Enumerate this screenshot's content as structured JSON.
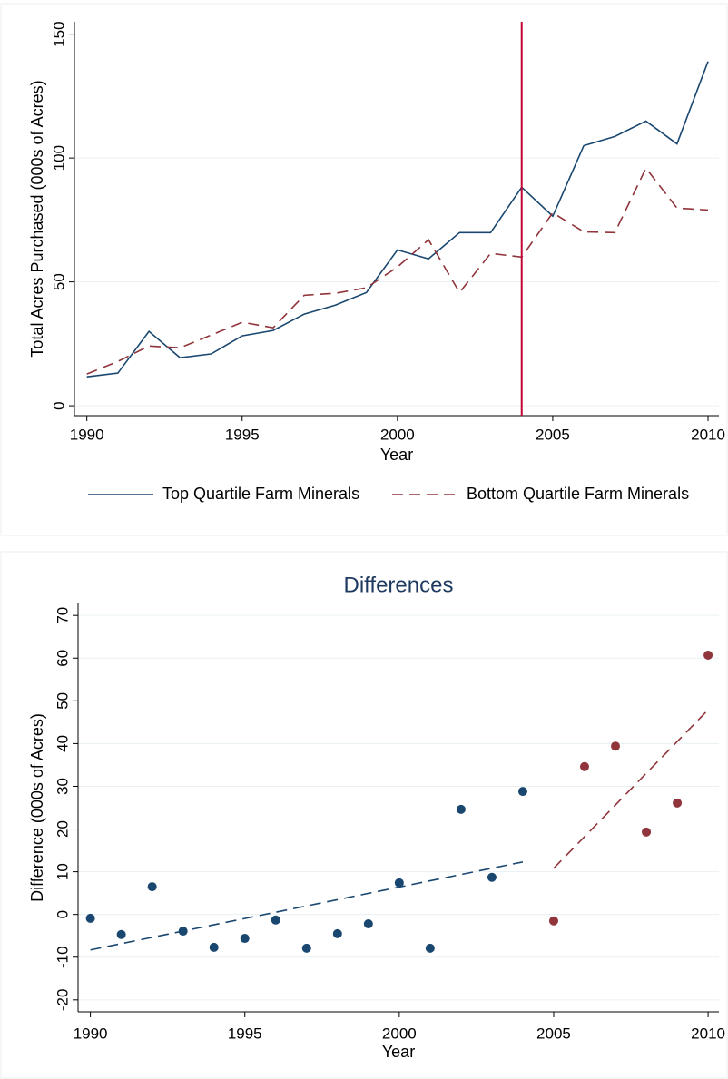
{
  "chart_data": [
    {
      "type": "line",
      "xlabel": "Year",
      "ylabel": "Total Acres Purchased (000s of Acres)",
      "xlim": [
        1989.6,
        2010.35
      ],
      "xticks": [
        1990,
        1995,
        2000,
        2005,
        2010
      ],
      "ylim": [
        -4,
        155
      ],
      "yticks": [
        0,
        50,
        100,
        150
      ],
      "grid": true,
      "vline": 2004,
      "vline_color": "#c10534",
      "x": [
        1990,
        1991,
        1992,
        1993,
        1994,
        1995,
        1996,
        1997,
        1998,
        1999,
        2000,
        2001,
        2002,
        2003,
        2004,
        2005,
        2006,
        2007,
        2008,
        2009,
        2010
      ],
      "series": [
        {
          "name": "Top Quartile Farm Minerals",
          "color": "#1a476f",
          "line_style": "solid",
          "values": [
            11.7,
            13.2,
            30,
            19.4,
            20.9,
            28.2,
            30.4,
            37,
            40.6,
            45.7,
            62.9,
            59.3,
            69.9,
            69.9,
            88.2,
            76.5,
            105,
            108.7,
            114.9,
            105.7,
            139
          ]
        },
        {
          "name": "Bottom Quartile Farm Minerals",
          "color": "#90353b",
          "line_style": "dashed",
          "values": [
            12.8,
            17.9,
            24.1,
            23.4,
            28.5,
            33.7,
            31.5,
            44.6,
            45.4,
            47.6,
            56,
            67,
            45.7,
            61.5,
            60,
            77.9,
            70.2,
            69.9,
            95.9,
            79.8,
            79
          ]
        }
      ]
    },
    {
      "type": "scatter",
      "title": "Differences",
      "xlabel": "Year",
      "ylabel": "Difference (000s of Acres)",
      "xlim": [
        1989.6,
        2010.35
      ],
      "xticks": [
        1990,
        1995,
        2000,
        2005,
        2010
      ],
      "ylim": [
        -22.8,
        72.8
      ],
      "yticks": [
        -20,
        -10,
        0,
        10,
        20,
        30,
        40,
        50,
        60,
        70
      ],
      "grid": true,
      "series": [
        {
          "color": "#1a476f",
          "x": [
            1990,
            1991,
            1992,
            1993,
            1994,
            1995,
            1996,
            1997,
            1998,
            1999,
            2000,
            2001,
            2002,
            2003,
            2004
          ],
          "values": [
            -0.9,
            -4.7,
            6.5,
            -3.9,
            -7.7,
            -5.6,
            -1.3,
            -7.9,
            -4.5,
            -2.2,
            7.4,
            -7.9,
            24.6,
            8.7,
            28.8
          ]
        },
        {
          "color": "#90353b",
          "x": [
            2005,
            2006,
            2007,
            2008,
            2009,
            2010
          ],
          "values": [
            -1.5,
            34.6,
            39.4,
            19.3,
            26.1,
            60.7
          ]
        }
      ],
      "fit_lines": [
        {
          "color": "#1a476f",
          "x": [
            1990,
            2004
          ],
          "values": [
            -8.3,
            12.3
          ]
        },
        {
          "color": "#90353b",
          "x": [
            2005,
            2010
          ],
          "values": [
            10.8,
            47.9
          ]
        }
      ]
    }
  ]
}
